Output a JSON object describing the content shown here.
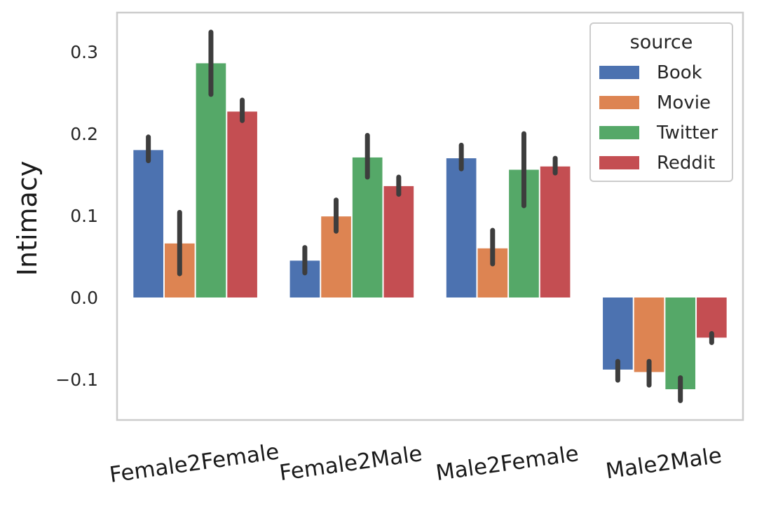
{
  "chart_data": {
    "type": "bar",
    "title": "",
    "xlabel": "",
    "ylabel": "Intimacy",
    "ylim": [
      -0.15,
      0.34
    ],
    "yticks": [
      -0.1,
      0.0,
      0.1,
      0.2,
      0.3
    ],
    "ytick_labels": [
      "−0.1",
      "0.0",
      "0.1",
      "0.2",
      "0.3"
    ],
    "grid": false,
    "categories": [
      "Female2Female",
      "Female2Male",
      "Male2Female",
      "Male2Male"
    ],
    "legend": {
      "title": "source",
      "placement": "top-right"
    },
    "series": [
      {
        "name": "Book",
        "color": "#4c72b0",
        "values": [
          0.18,
          0.045,
          0.17,
          -0.088
        ],
        "ci_low": [
          0.167,
          0.03,
          0.157,
          -0.101
        ],
        "ci_high": [
          0.196,
          0.061,
          0.186,
          -0.078
        ]
      },
      {
        "name": "Movie",
        "color": "#dd8452",
        "values": [
          0.066,
          0.099,
          0.06,
          -0.091
        ],
        "ci_low": [
          0.029,
          0.081,
          0.041,
          -0.107
        ],
        "ci_high": [
          0.104,
          0.119,
          0.082,
          -0.078
        ]
      },
      {
        "name": "Twitter",
        "color": "#55a868",
        "values": [
          0.286,
          0.171,
          0.156,
          -0.112
        ],
        "ci_low": [
          0.248,
          0.147,
          0.112,
          -0.126
        ],
        "ci_high": [
          0.324,
          0.198,
          0.2,
          -0.098
        ]
      },
      {
        "name": "Reddit",
        "color": "#c44e52",
        "values": [
          0.227,
          0.136,
          0.16,
          -0.049
        ],
        "ci_low": [
          0.216,
          0.126,
          0.152,
          -0.055
        ],
        "ci_high": [
          0.241,
          0.147,
          0.17,
          -0.044
        ]
      }
    ]
  }
}
